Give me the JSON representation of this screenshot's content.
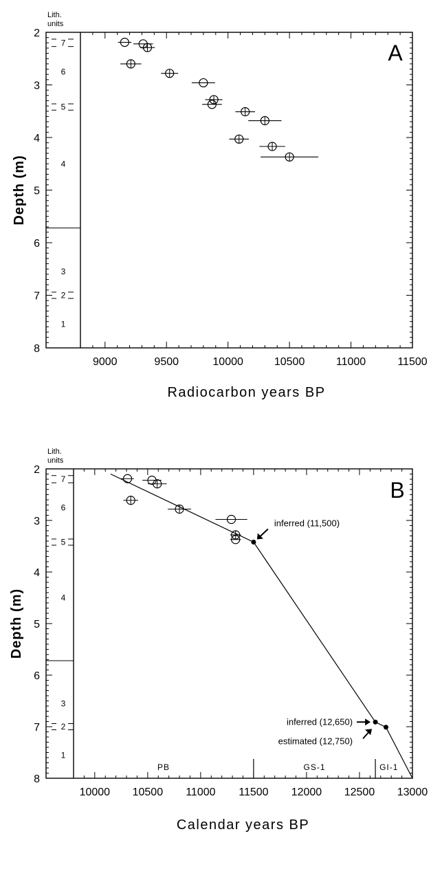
{
  "chart_data": [
    {
      "type": "scatter",
      "panel_label": "A",
      "xlabel": "Radiocarbon years BP",
      "ylabel": "Depth (m)",
      "xlim": [
        8800,
        11500
      ],
      "ylim": [
        8,
        2
      ],
      "x_ticks": [
        9000,
        9500,
        10000,
        10500,
        11000,
        11500
      ],
      "y_ticks": [
        2,
        3,
        4,
        5,
        6,
        7,
        8
      ],
      "lith_header": [
        "Lith.",
        "units"
      ],
      "lith_units": [
        {
          "label": "7",
          "depth": 2.2
        },
        {
          "label": "6",
          "depth": 2.75
        },
        {
          "label": "5",
          "depth": 3.42
        },
        {
          "label": "4",
          "depth": 4.5
        },
        {
          "label": "3",
          "depth": 6.55
        },
        {
          "label": "2",
          "depth": 7.0
        },
        {
          "label": "1",
          "depth": 7.55
        }
      ],
      "lith_boundaries": [
        {
          "depth": 2.13,
          "style": "tick"
        },
        {
          "depth": 2.27,
          "style": "tick"
        },
        {
          "depth": 3.36,
          "style": "tick"
        },
        {
          "depth": 3.48,
          "style": "tick"
        },
        {
          "depth": 5.72,
          "style": "full"
        },
        {
          "depth": 6.94,
          "style": "tick"
        },
        {
          "depth": 7.06,
          "style": "tick"
        }
      ],
      "points": [
        {
          "x": 9160,
          "y": 2.19,
          "xerr": 55,
          "cross": false
        },
        {
          "x": 9310,
          "y": 2.22,
          "xerr": 80,
          "cross": false
        },
        {
          "x": 9345,
          "y": 2.29,
          "xerr": 60,
          "cross": true
        },
        {
          "x": 9210,
          "y": 2.6,
          "xerr": 85,
          "cross": true
        },
        {
          "x": 9525,
          "y": 2.78,
          "xerr": 70,
          "cross": true
        },
        {
          "x": 9800,
          "y": 2.96,
          "xerr": 95,
          "cross": false
        },
        {
          "x": 9885,
          "y": 3.28,
          "xerr": 70,
          "cross": true
        },
        {
          "x": 9870,
          "y": 3.37,
          "xerr": 80,
          "cross": false
        },
        {
          "x": 10140,
          "y": 3.51,
          "xerr": 80,
          "cross": true
        },
        {
          "x": 10300,
          "y": 3.68,
          "xerr": 135,
          "cross": true
        },
        {
          "x": 10090,
          "y": 4.03,
          "xerr": 80,
          "cross": true
        },
        {
          "x": 10360,
          "y": 4.17,
          "xerr": 105,
          "cross": true
        },
        {
          "x": 10500,
          "y": 4.37,
          "xerr": 235,
          "cross": true
        }
      ]
    },
    {
      "type": "scatter",
      "panel_label": "B",
      "xlabel": "Calendar  years BP",
      "ylabel": "Depth (m)",
      "xlim": [
        9800,
        13000
      ],
      "ylim": [
        8,
        2
      ],
      "x_ticks": [
        10000,
        10500,
        11000,
        11500,
        12000,
        12500,
        13000
      ],
      "y_ticks": [
        2,
        3,
        4,
        5,
        6,
        7,
        8
      ],
      "lith_header": [
        "Lith.",
        "units"
      ],
      "lith_units": [
        {
          "label": "7",
          "depth": 2.2
        },
        {
          "label": "6",
          "depth": 2.75
        },
        {
          "label": "5",
          "depth": 3.42
        },
        {
          "label": "4",
          "depth": 4.5
        },
        {
          "label": "3",
          "depth": 6.55
        },
        {
          "label": "2",
          "depth": 7.0
        },
        {
          "label": "1",
          "depth": 7.55
        }
      ],
      "lith_boundaries": [
        {
          "depth": 2.13,
          "style": "tick"
        },
        {
          "depth": 2.27,
          "style": "tick"
        },
        {
          "depth": 3.36,
          "style": "tick"
        },
        {
          "depth": 3.48,
          "style": "tick"
        },
        {
          "depth": 5.72,
          "style": "full"
        },
        {
          "depth": 6.94,
          "style": "tick"
        },
        {
          "depth": 7.06,
          "style": "tick"
        }
      ],
      "points": [
        {
          "x": 10310,
          "y": 2.19,
          "xerr": 60,
          "cross": false
        },
        {
          "x": 10540,
          "y": 2.22,
          "xerr": 90,
          "cross": false
        },
        {
          "x": 10590,
          "y": 2.29,
          "xerr": 90,
          "cross": true
        },
        {
          "x": 10340,
          "y": 2.61,
          "xerr": 70,
          "cross": true
        },
        {
          "x": 10800,
          "y": 2.78,
          "xerr": 110,
          "cross": true
        },
        {
          "x": 11290,
          "y": 2.98,
          "xerr": 150,
          "cross": false
        },
        {
          "x": 11330,
          "y": 3.28,
          "xerr": 50,
          "cross": true
        },
        {
          "x": 11330,
          "y": 3.37,
          "xerr": 50,
          "cross": false
        }
      ],
      "age_depth_line": [
        [
          10150,
          2.1
        ],
        [
          11500,
          3.42
        ],
        [
          12650,
          6.91
        ],
        [
          12750,
          7.01
        ],
        [
          13000,
          8.0
        ]
      ],
      "markers": [
        {
          "x": 11500,
          "y": 3.42
        },
        {
          "x": 12650,
          "y": 6.91
        },
        {
          "x": 12750,
          "y": 7.01
        }
      ],
      "annotations": [
        {
          "text": "inferred (11,500)",
          "arrow": "down-left"
        },
        {
          "text": "inferred (12,650)",
          "arrow": "right"
        },
        {
          "text": "estimated (12,750)",
          "arrow": "up-right"
        }
      ],
      "zones": [
        {
          "label": "PB",
          "from": 9800,
          "to": 11500
        },
        {
          "label": "GS-1",
          "from": 11500,
          "to": 12650
        },
        {
          "label": "GI-1",
          "from": 12650,
          "to": 13000
        }
      ]
    }
  ]
}
